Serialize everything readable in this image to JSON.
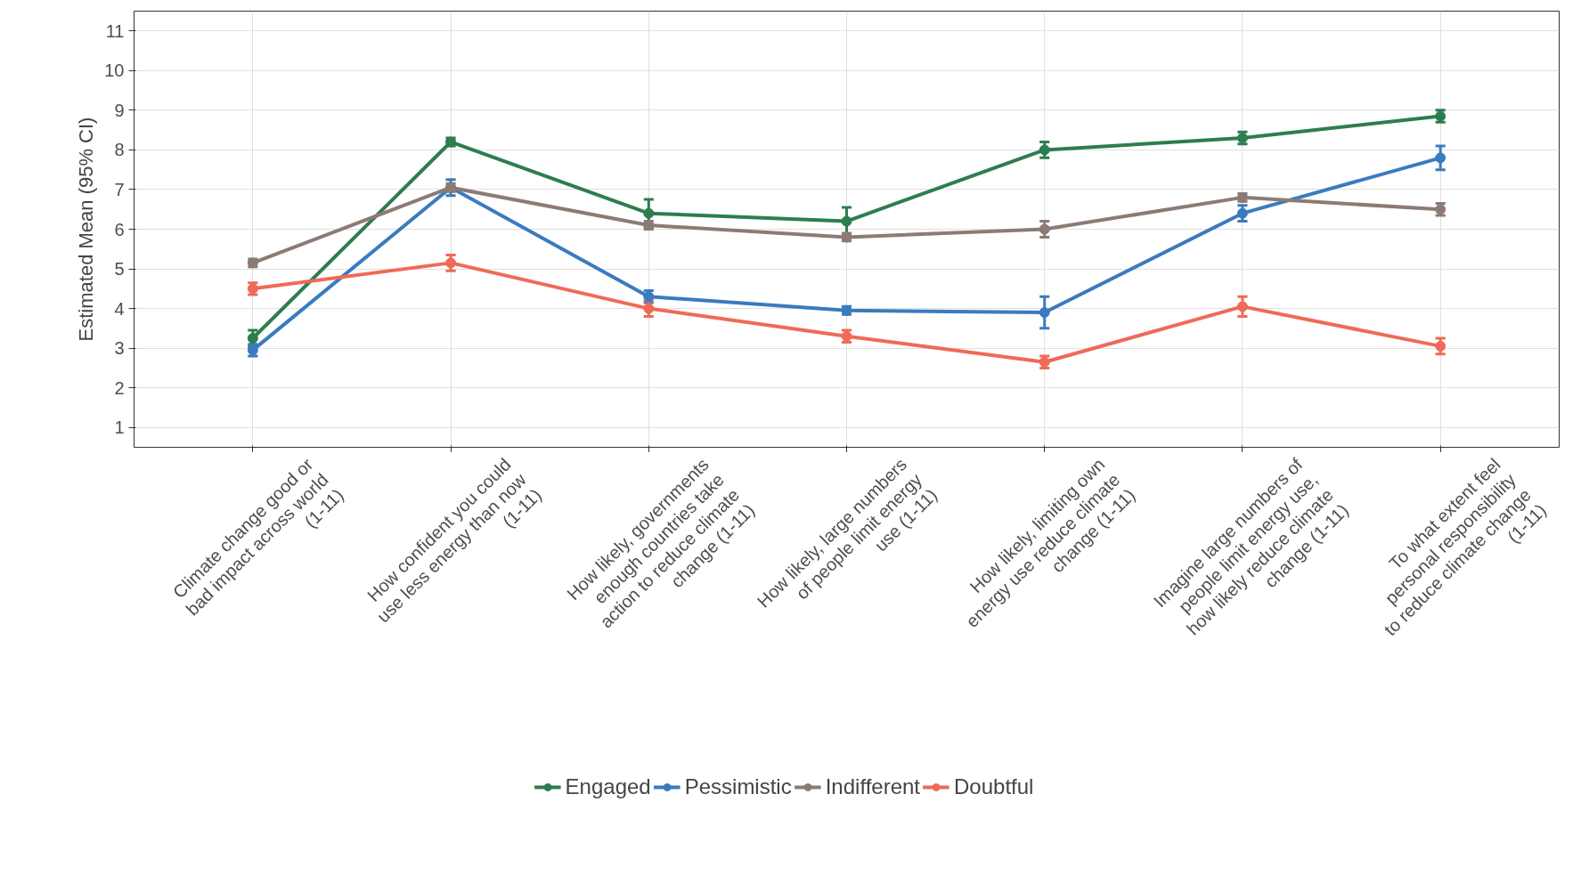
{
  "chart_data": {
    "type": "line",
    "ylabel": "Estimated Mean (95% CI)",
    "categories": [
      "Climate change good or\nbad impact across world\n(1-11)",
      "How confident you could\nuse less energy than now\n(1-11)",
      "How likely, governments\nenough countries take\naction to reduce climate\nchange (1-11)",
      "How likely, large numbers\nof people limit energy\nuse (1-11)",
      "How likely, limiting own\nenergy use reduce climate\nchange (1-11)",
      "Imagine large numbers of\npeople limit energy use,\nhow likely reduce climate\nchange (1-11)",
      "To what extent feel\npersonal responsibility\nto reduce climate change\n(1-11)"
    ],
    "series": [
      {
        "name": "Engaged",
        "color": "#2e7d4f",
        "values": [
          3.25,
          8.2,
          6.4,
          6.2,
          8.0,
          8.3,
          8.85
        ],
        "errors": [
          0.2,
          0.1,
          0.35,
          0.35,
          0.2,
          0.15,
          0.15
        ]
      },
      {
        "name": "Pessimistic",
        "color": "#3a7bbf",
        "values": [
          2.95,
          7.05,
          4.3,
          3.95,
          3.9,
          6.4,
          7.8
        ],
        "errors": [
          0.15,
          0.2,
          0.15,
          0.1,
          0.4,
          0.2,
          0.3
        ]
      },
      {
        "name": "Indifferent",
        "color": "#8c7b75",
        "values": [
          5.15,
          7.05,
          6.1,
          5.8,
          6.0,
          6.8,
          6.5
        ],
        "errors": [
          0.1,
          0.1,
          0.1,
          0.1,
          0.2,
          0.1,
          0.15
        ]
      },
      {
        "name": "Doubtful",
        "color": "#ef6a57",
        "values": [
          4.5,
          5.15,
          4.0,
          3.3,
          2.65,
          4.05,
          3.05
        ],
        "errors": [
          0.15,
          0.2,
          0.2,
          0.15,
          0.15,
          0.25,
          0.2
        ]
      }
    ],
    "ylim": [
      0.5,
      11.5
    ],
    "yticks": [
      1,
      2,
      3,
      4,
      5,
      6,
      7,
      8,
      9,
      10,
      11
    ],
    "grid": true,
    "legend": "bottom",
    "marker": "circle",
    "line_style": "solid"
  }
}
